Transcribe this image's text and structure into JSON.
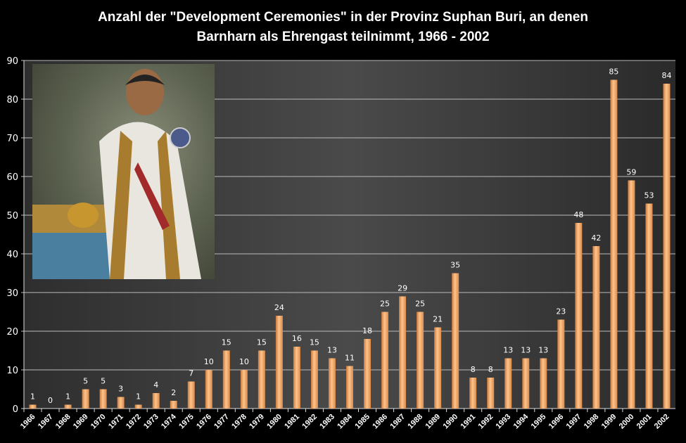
{
  "chart_data": {
    "type": "bar",
    "title_line1": "Anzahl der \"Development Ceremonies\" in der Provinz Suphan Buri, an denen",
    "title_line2": "Barnharn als Ehrengast teilnimmt, 1966 - 2002",
    "xlabel": "",
    "ylabel": "",
    "ylim": [
      0,
      90
    ],
    "yticks": [
      0,
      10,
      20,
      30,
      40,
      50,
      60,
      70,
      80,
      90
    ],
    "grid": true,
    "categories": [
      "1966",
      "1967",
      "1968",
      "1969",
      "1970",
      "1971",
      "1972",
      "1973",
      "1974",
      "1975",
      "1976",
      "1977",
      "1978",
      "1979",
      "1980",
      "1981",
      "1982",
      "1983",
      "1984",
      "1985",
      "1986",
      "1987",
      "1988",
      "1989",
      "1990",
      "1991",
      "1992",
      "1993",
      "1994",
      "1995",
      "1996",
      "1997",
      "1998",
      "1999",
      "2000",
      "2001",
      "2002"
    ],
    "values": [
      1,
      0,
      1,
      5,
      5,
      3,
      1,
      4,
      2,
      7,
      10,
      15,
      10,
      15,
      24,
      16,
      15,
      13,
      11,
      18,
      25,
      29,
      25,
      21,
      35,
      8,
      8,
      13,
      13,
      13,
      23,
      48,
      42,
      85,
      59,
      53,
      84
    ],
    "bar_color": "#f0a868"
  }
}
